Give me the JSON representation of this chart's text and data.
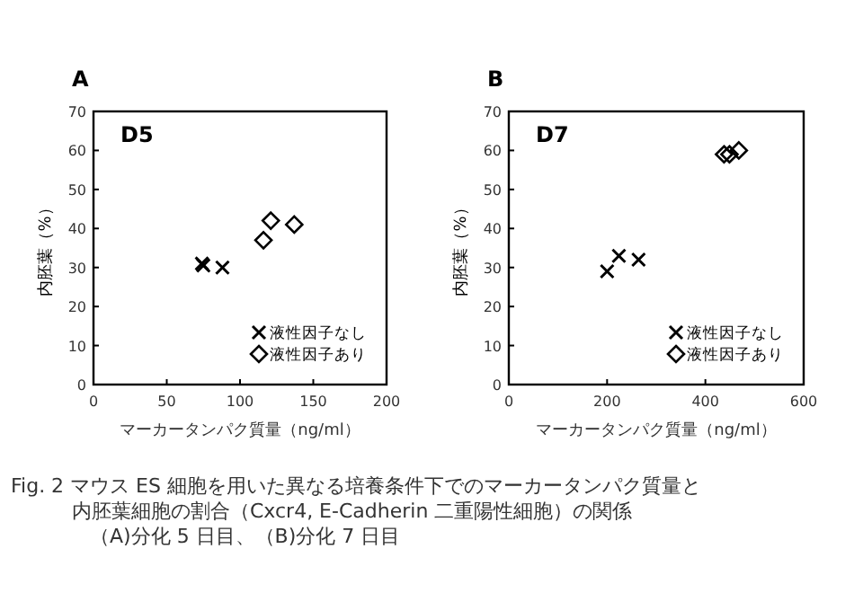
{
  "chart_data": [
    {
      "type": "scatter",
      "title": "A",
      "xlabel": "マーカータンパク質量（ng/ml）",
      "ylabel": "内胚葉（%）",
      "xlim": [
        0,
        200
      ],
      "xticks": [
        0,
        50,
        100,
        150,
        200
      ],
      "ylim": [
        0,
        70
      ],
      "yticks": [
        0,
        10,
        20,
        30,
        40,
        50,
        60,
        70
      ],
      "legend": "bottom right",
      "annotations": [
        "D5",
        "Fig. 2  マウス ES 細胞を用いた異なる培養条件下でのマーカータンパク質量と",
        "内胚葉細胞の割合（Cxcr4, E-Cadherin 二重陽性細胞）の関係",
        "（A)分化 5 日目、（B)分化 7 日目"
      ],
      "series": [
        {
          "name": "液性因子なし",
          "color": "#000000",
          "marker": "cross",
          "x": [
            74,
            75,
            88
          ],
          "values": [
            31,
            30.5,
            30
          ]
        },
        {
          "name": "液性因子あり",
          "color": "#000000",
          "marker": "diamond",
          "x": [
            116,
            121,
            137
          ],
          "values": [
            37,
            42,
            41
          ]
        }
      ]
    },
    {
      "type": "scatter",
      "title": "B",
      "xlabel": "マーカータンパク質量（ng/ml）",
      "ylabel": "内胚葉（%）",
      "xlim": [
        0,
        600
      ],
      "xticks": [
        0,
        200,
        400,
        600
      ],
      "ylim": [
        0,
        70
      ],
      "yticks": [
        0,
        10,
        20,
        30,
        40,
        50,
        60,
        70
      ],
      "legend": "bottom right",
      "annotations": [
        "D7"
      ],
      "series": [
        {
          "name": "液性因子なし",
          "color": "#000000",
          "marker": "cross",
          "x": [
            200,
            224,
            264
          ],
          "values": [
            29,
            33,
            32
          ]
        },
        {
          "name": "液性因子あり",
          "color": "#000000",
          "marker": "diamond",
          "x": [
            438,
            449,
            468
          ],
          "values": [
            59,
            59,
            60
          ]
        }
      ]
    }
  ]
}
